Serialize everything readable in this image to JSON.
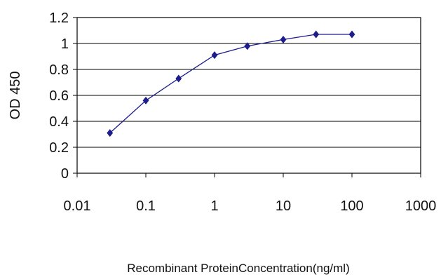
{
  "chart_data": {
    "type": "line",
    "xscale": "log",
    "xlim": [
      0.01,
      1000
    ],
    "ylim": [
      0,
      1.2
    ],
    "xticks": [
      0.01,
      0.1,
      1,
      10,
      100,
      1000
    ],
    "yticks": [
      0,
      0.2,
      0.4,
      0.6,
      0.8,
      1,
      1.2
    ],
    "xtick_labels": [
      "0.01",
      "0.1",
      "1",
      "10",
      "100",
      "1000"
    ],
    "ytick_labels": [
      "0",
      "0.2",
      "0.4",
      "0.6",
      "0.8",
      "1",
      "1.2"
    ],
    "xlabel": "Recombinant ProteinConcentration(ng/ml)",
    "ylabel": "OD 450",
    "grid": "horizontal",
    "legend": "none",
    "series": [
      {
        "x": [
          0.03,
          0.1,
          0.3,
          1,
          3,
          10,
          30,
          100
        ],
        "y": [
          0.31,
          0.56,
          0.73,
          0.91,
          0.98,
          1.03,
          1.07,
          1.07
        ],
        "color": "#1c1c8c",
        "marker": "diamond"
      }
    ]
  }
}
